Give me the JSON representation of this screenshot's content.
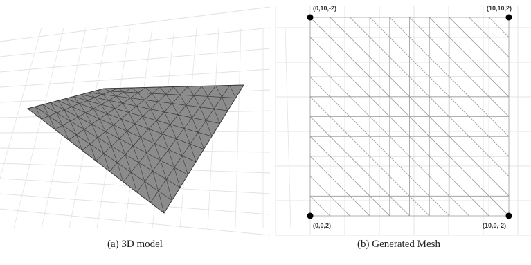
{
  "panels": [
    {
      "caption": "(a) 3D model"
    },
    {
      "caption": "(b) Generated Mesh",
      "vertices": [
        {
          "label": "(0,10,-2)"
        },
        {
          "label": "(10,10,2)"
        },
        {
          "label": "(0,0,2)"
        },
        {
          "label": "(10,0,-2)"
        }
      ]
    }
  ]
}
